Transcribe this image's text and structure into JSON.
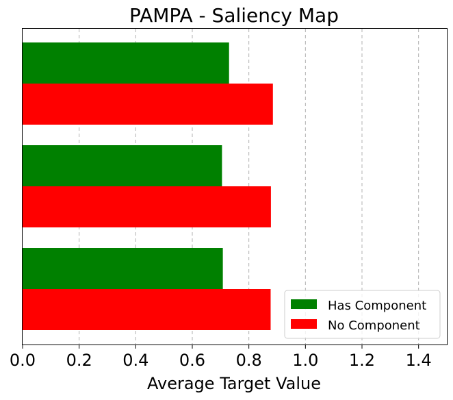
{
  "chart_data": {
    "type": "bar",
    "orientation": "horizontal",
    "title": "PAMPA - Saliency Map",
    "xlabel": "Average Target Value",
    "ylabel": "",
    "xlim": [
      0.0,
      1.5
    ],
    "xticks": [
      "0.0",
      "0.2",
      "0.4",
      "0.6",
      "0.8",
      "1.0",
      "1.2",
      "1.4"
    ],
    "grid": "x-dashed",
    "legend_position": "bottom-right",
    "series": [
      {
        "name": "Has Component",
        "color": "#008000",
        "values": [
          0.73,
          0.705,
          0.708
        ]
      },
      {
        "name": "No Component",
        "color": "#ff0000",
        "values": [
          0.885,
          0.878,
          0.877
        ]
      }
    ]
  }
}
